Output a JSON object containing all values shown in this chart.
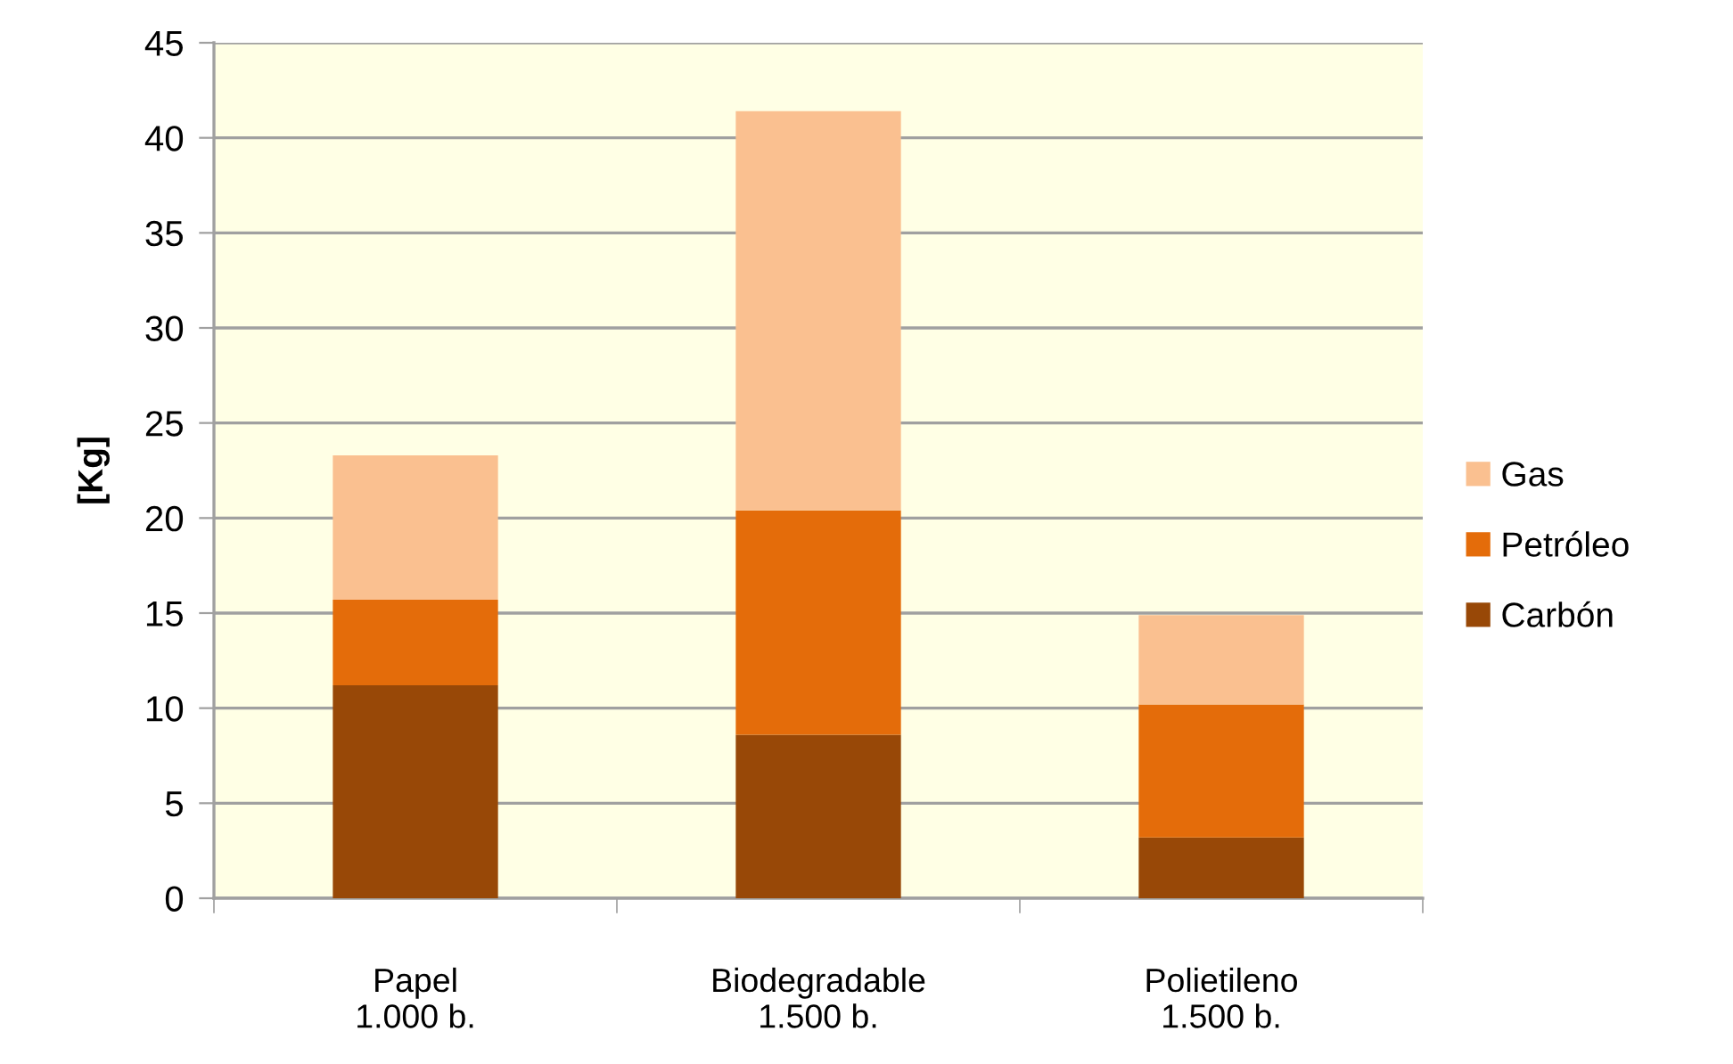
{
  "chart_data": {
    "type": "bar",
    "ylabel": "[Kg]",
    "categories": [
      "Papel\n1.000 b.",
      "Biodegradable\n1.500 b.",
      "Polietileno\n1.500 b."
    ],
    "stacked": true,
    "series": [
      {
        "name": "Carbón",
        "color": "#984807",
        "values": [
          11.2,
          8.6,
          3.2
        ]
      },
      {
        "name": "Petróleo",
        "color": "#e46c0a",
        "values": [
          4.5,
          11.8,
          7.0
        ]
      },
      {
        "name": "Gas",
        "color": "#fac090",
        "values": [
          7.6,
          21.0,
          4.7
        ]
      }
    ],
    "ylim": [
      0,
      45
    ],
    "yticks": [
      0,
      5,
      10,
      15,
      20,
      25,
      30,
      35,
      40,
      45
    ],
    "grid": "y",
    "legend": "right"
  }
}
